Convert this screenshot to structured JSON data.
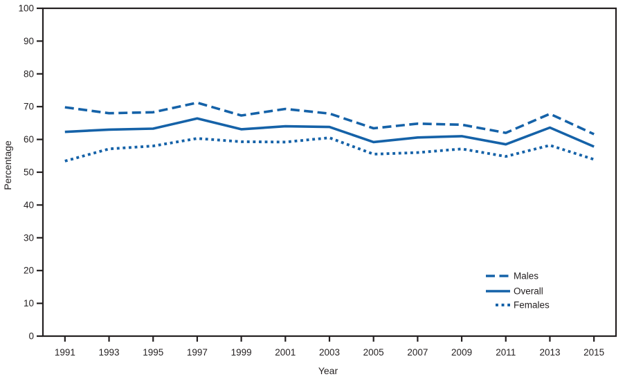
{
  "chart_data": {
    "type": "line",
    "title": "",
    "xlabel": "Year",
    "ylabel": "Percentage",
    "x": [
      1991,
      1993,
      1995,
      1997,
      1999,
      2001,
      2003,
      2005,
      2007,
      2009,
      2011,
      2013,
      2015
    ],
    "xtick_labels": [
      "1991",
      "1993",
      "1995",
      "1997",
      "1999",
      "2001",
      "2003",
      "2005",
      "2007",
      "2009",
      "2011",
      "2013",
      "2015"
    ],
    "xlim": [
      1990,
      2016
    ],
    "ylim": [
      0,
      100
    ],
    "ytick_labels": [
      0,
      10,
      20,
      30,
      40,
      50,
      60,
      70,
      80,
      90,
      100
    ],
    "grid": false,
    "legend_position": "lower-right",
    "series": [
      {
        "name": "Males",
        "style": "dashed",
        "values": [
          69.8,
          68.0,
          68.3,
          71.2,
          67.3,
          69.3,
          67.9,
          63.4,
          64.8,
          64.5,
          62.0,
          67.8,
          61.6
        ]
      },
      {
        "name": "Overall",
        "style": "solid",
        "values": [
          62.3,
          63.0,
          63.3,
          66.4,
          63.1,
          64.0,
          63.8,
          59.2,
          60.6,
          61.0,
          58.5,
          63.6,
          57.8
        ]
      },
      {
        "name": "Females",
        "style": "dotted",
        "values": [
          53.4,
          57.1,
          58.0,
          60.3,
          59.3,
          59.2,
          60.5,
          55.5,
          56.0,
          57.1,
          54.8,
          58.2,
          53.9
        ]
      }
    ],
    "colors": {
      "line": "#1562a8",
      "axis": "#231f20",
      "background": "#ffffff"
    }
  }
}
